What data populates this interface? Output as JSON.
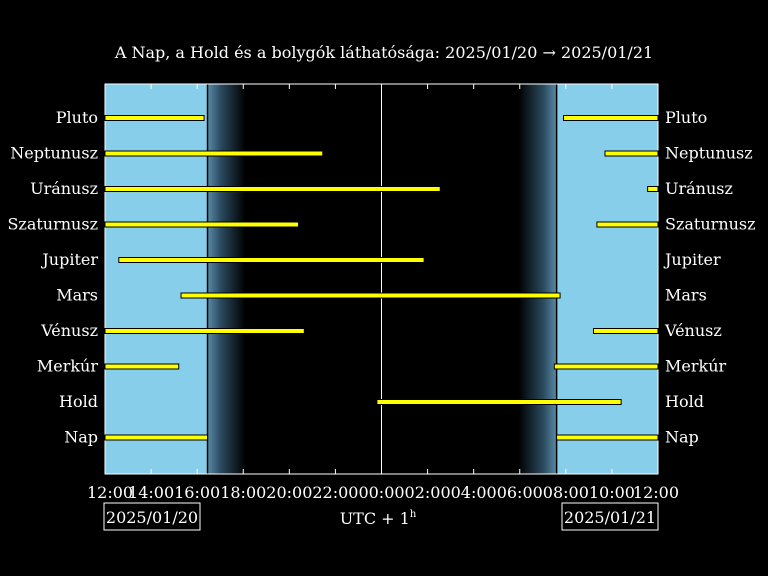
{
  "chart_data": {
    "type": "bar",
    "title": "A Nap, a Hold és a bolygók láthatósága: 2025/01/20 → 2025/01/21",
    "xlabel_main": "UTC + 1",
    "xlabel_sup": "h",
    "date_left": "2025/01/20",
    "date_right": "2025/01/21",
    "x_ticks": [
      "12:00",
      "14:00",
      "16:00",
      "18:00",
      "20:00",
      "22:00",
      "00:00",
      "02:00",
      "04:00",
      "06:00",
      "08:00",
      "10:00",
      "12:00"
    ],
    "x_range_hours": [
      12,
      36
    ],
    "midnight_hour": 24,
    "sunset_hour": 16.45,
    "sunrise_hour": 31.6,
    "twilight_evening_end_hour": 18.1,
    "twilight_morning_start_hour": 29.95,
    "categories": [
      "Pluto",
      "Neptunusz",
      "Uránusz",
      "Szaturnusz",
      "Jupiter",
      "Mars",
      "Vénusz",
      "Merkúr",
      "Hold",
      "Nap"
    ],
    "intervals": [
      [
        [
          12,
          16.3
        ],
        [
          31.9,
          36
        ]
      ],
      [
        [
          12,
          21.45
        ],
        [
          33.7,
          36
        ]
      ],
      [
        [
          12,
          26.55
        ],
        [
          35.55,
          36
        ]
      ],
      [
        [
          12,
          20.4
        ],
        [
          33.35,
          36
        ]
      ],
      [
        [
          12.6,
          25.85
        ]
      ],
      [
        [
          15.3,
          31.75
        ]
      ],
      [
        [
          12,
          20.65
        ],
        [
          33.2,
          36
        ]
      ],
      [
        [
          12,
          15.2
        ],
        [
          31.5,
          36
        ]
      ],
      [
        [
          23.8,
          34.4
        ]
      ],
      [
        [
          12,
          16.45
        ],
        [
          31.6,
          36
        ]
      ]
    ],
    "colors": {
      "background": "#000000",
      "daylight": "#87ceeb",
      "bar": "#ffff00",
      "bar_edge": "#000000",
      "axis": "#ffffff"
    }
  }
}
